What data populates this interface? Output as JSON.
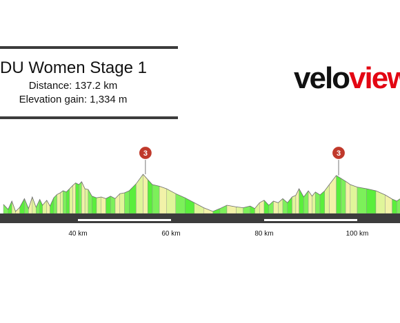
{
  "title_box": {
    "title": "DU Women Stage 1",
    "distance": "Distance: 137.2 km",
    "elevation_gain": "Elevation gain: 1,334 m"
  },
  "logo": {
    "part1": "velo",
    "part2": "view"
  },
  "colors": {
    "bar": "#3c3c3c",
    "logo_red": "#e30613",
    "climb_badge": "#c0392b"
  },
  "chart_data": {
    "type": "area",
    "title": "DU Women Stage 1",
    "x_unit": "km",
    "x_ticks": [
      {
        "km": 40,
        "label": "40 km"
      },
      {
        "km": 60,
        "label": "60 km"
      },
      {
        "km": 80,
        "label": "80 km"
      },
      {
        "km": 100,
        "label": "100 km"
      }
    ],
    "climbs": [
      {
        "km": 54.5,
        "label": "3"
      },
      {
        "km": 96.0,
        "label": "3"
      }
    ],
    "profile": [
      [
        24.0,
        0.22
      ],
      [
        25.0,
        0.1
      ],
      [
        25.8,
        0.3
      ],
      [
        26.6,
        0.05
      ],
      [
        27.5,
        0.15
      ],
      [
        28.5,
        0.36
      ],
      [
        29.4,
        0.12
      ],
      [
        30.2,
        0.4
      ],
      [
        31.0,
        0.15
      ],
      [
        31.8,
        0.34
      ],
      [
        32.4,
        0.2
      ],
      [
        33.3,
        0.32
      ],
      [
        34.0,
        0.18
      ],
      [
        34.8,
        0.38
      ],
      [
        35.5,
        0.46
      ],
      [
        36.2,
        0.5
      ],
      [
        36.8,
        0.55
      ],
      [
        37.5,
        0.52
      ],
      [
        38.2,
        0.6
      ],
      [
        38.9,
        0.68
      ],
      [
        39.5,
        0.74
      ],
      [
        40.2,
        0.7
      ],
      [
        40.8,
        0.77
      ],
      [
        41.5,
        0.6
      ],
      [
        42.2,
        0.58
      ],
      [
        43.0,
        0.42
      ],
      [
        44.0,
        0.38
      ],
      [
        45.0,
        0.4
      ],
      [
        46.0,
        0.36
      ],
      [
        47.0,
        0.42
      ],
      [
        48.0,
        0.36
      ],
      [
        49.0,
        0.48
      ],
      [
        50.0,
        0.5
      ],
      [
        51.0,
        0.55
      ],
      [
        52.5,
        0.72
      ],
      [
        54.0,
        0.95
      ],
      [
        55.0,
        0.82
      ],
      [
        56.0,
        0.7
      ],
      [
        57.5,
        0.66
      ],
      [
        59.0,
        0.6
      ],
      [
        61.0,
        0.48
      ],
      [
        63.0,
        0.38
      ],
      [
        65.0,
        0.26
      ],
      [
        67.0,
        0.14
      ],
      [
        69.0,
        0.05
      ],
      [
        70.5,
        0.12
      ],
      [
        72.0,
        0.2
      ],
      [
        74.0,
        0.16
      ],
      [
        75.5,
        0.14
      ],
      [
        77.0,
        0.18
      ],
      [
        78.0,
        0.12
      ],
      [
        79.0,
        0.26
      ],
      [
        80.0,
        0.32
      ],
      [
        81.0,
        0.2
      ],
      [
        82.0,
        0.3
      ],
      [
        83.0,
        0.26
      ],
      [
        84.0,
        0.36
      ],
      [
        85.0,
        0.26
      ],
      [
        86.0,
        0.4
      ],
      [
        86.8,
        0.44
      ],
      [
        87.5,
        0.6
      ],
      [
        88.5,
        0.4
      ],
      [
        89.5,
        0.55
      ],
      [
        90.3,
        0.42
      ],
      [
        91.0,
        0.52
      ],
      [
        92.0,
        0.45
      ],
      [
        93.0,
        0.55
      ],
      [
        94.0,
        0.7
      ],
      [
        95.5,
        0.92
      ],
      [
        96.5,
        0.85
      ],
      [
        97.5,
        0.78
      ],
      [
        98.5,
        0.7
      ],
      [
        100.0,
        0.64
      ],
      [
        102.0,
        0.6
      ],
      [
        104.0,
        0.55
      ],
      [
        106.0,
        0.45
      ],
      [
        107.5,
        0.35
      ],
      [
        108.5,
        0.3
      ],
      [
        109.5,
        0.38
      ],
      [
        110.0,
        0.4
      ]
    ]
  }
}
